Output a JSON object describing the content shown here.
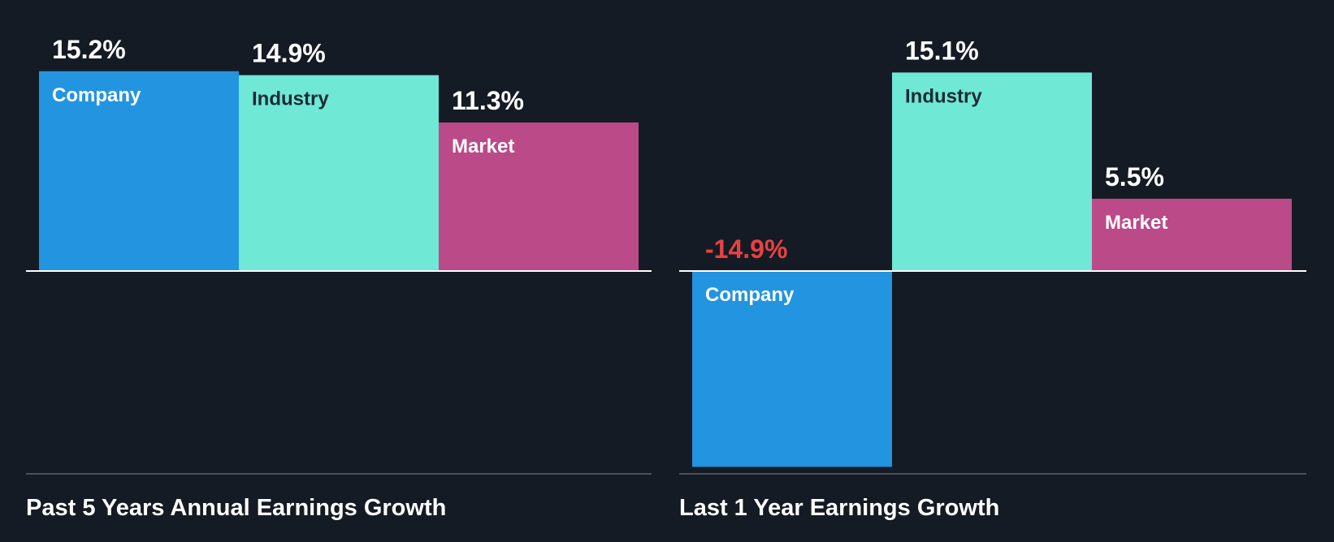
{
  "colors": {
    "background": "#151b24",
    "company": "#2394e0",
    "industry": "#6fe8d6",
    "market": "#bb4a88",
    "positive_text": "#ffffff",
    "negative_text": "#e84142",
    "dark_label": "#1d2a36",
    "axis": "#ffffff",
    "baseline": "#4b5059"
  },
  "chart_data": [
    {
      "type": "bar",
      "title": "Past 5 Years Annual Earnings Growth",
      "categories": [
        "Company",
        "Industry",
        "Market"
      ],
      "values": [
        15.2,
        14.9,
        11.3
      ],
      "value_labels": [
        "15.2%",
        "14.9%",
        "11.3%"
      ],
      "unit": "%",
      "grid": false,
      "legend": "none"
    },
    {
      "type": "bar",
      "title": "Last 1 Year Earnings Growth",
      "categories": [
        "Company",
        "Industry",
        "Market"
      ],
      "values": [
        -14.9,
        15.1,
        5.5
      ],
      "value_labels": [
        "-14.9%",
        "15.1%",
        "5.5%"
      ],
      "unit": "%",
      "grid": false,
      "legend": "none"
    }
  ]
}
